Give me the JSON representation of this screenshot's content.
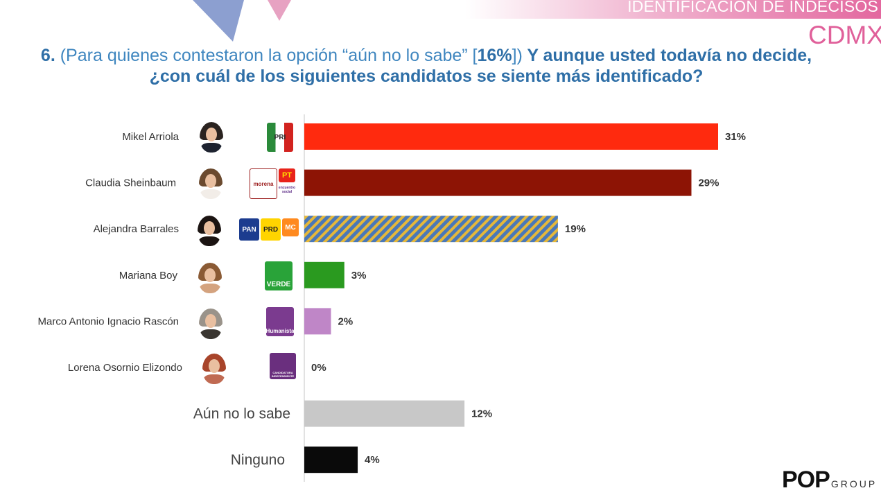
{
  "header": {
    "tag": "IDENTIFICACION DE INDECISOS",
    "region": "CDMX"
  },
  "question": {
    "number": "6.",
    "intro_a": "(Para quienes contestaron la opción “aún no lo sabe” [",
    "intro_pct": "16%",
    "intro_b": "])",
    "bold_line1": " Y aunque usted todavía no decide,",
    "bold_line2": "¿con cuál de los siguientes candidatos se siente más identificado?"
  },
  "chart_data": {
    "type": "bar",
    "orientation": "horizontal",
    "categories": [
      "Mikel Arriola",
      "Claudia Sheinbaum",
      "Alejandra Barrales",
      "Mariana Boy",
      "Marco Antonio Ignacio Rascón",
      "Lorena Osornio Elizondo",
      "Aún no lo sabe",
      "Ninguno"
    ],
    "values": [
      31,
      29,
      19,
      3,
      2,
      0,
      12,
      4
    ],
    "value_labels": [
      "31%",
      "29%",
      "19%",
      "3%",
      "2%",
      "0%",
      "12%",
      "4%"
    ],
    "colors": [
      "#ff2a0e",
      "#8d1405",
      "striped-blue-gold",
      "#2a9a1f",
      "#bf86c7",
      "#e8d6ea",
      "#c8c8c8",
      "#0a0a0a"
    ],
    "xlim": [
      0,
      31
    ],
    "grid": false,
    "legend": "none"
  },
  "parties": {
    "mikel": [
      "PRI"
    ],
    "claudia": [
      "morena",
      "PT",
      "encuentro social"
    ],
    "alejandra": [
      "PAN",
      "PRD",
      "MC"
    ],
    "mariana": [
      "VERDE"
    ],
    "marco": [
      "Humanista"
    ],
    "lorena": [
      "CANDIDATURA INDEPENDIENTE"
    ]
  },
  "logo": {
    "word": "POP",
    "suffix": "GROUP"
  }
}
